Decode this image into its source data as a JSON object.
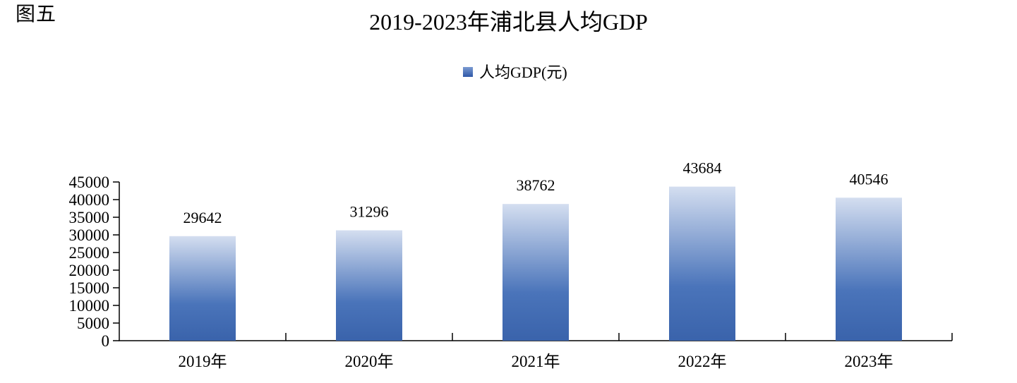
{
  "figure_label": "图五",
  "title": "2019-2023年浦北县人均GDP",
  "legend": {
    "label": "人均GDP(元)",
    "swatch_top": "#7b9bd2",
    "swatch_bottom": "#2f58a7"
  },
  "colors": {
    "background": "#ffffff",
    "text": "#000000",
    "axis": "#000000",
    "bar_gradient_top": "#d4def0",
    "bar_gradient_mid": "#4a74ba",
    "bar_gradient_bottom": "#3a63ab"
  },
  "chart_data": {
    "type": "bar",
    "title": "2019-2023年浦北县人均GDP",
    "categories": [
      "2019年",
      "2020年",
      "2021年",
      "2022年",
      "2023年"
    ],
    "series": [
      {
        "name": "人均GDP(元)",
        "values": [
          29642,
          31296,
          38762,
          43684,
          40546
        ]
      }
    ],
    "data_labels": true,
    "xlabel": "",
    "ylabel": "",
    "ylim": [
      0,
      45000
    ],
    "ytick_step": 5000,
    "grid": false,
    "legend_position": "top"
  }
}
